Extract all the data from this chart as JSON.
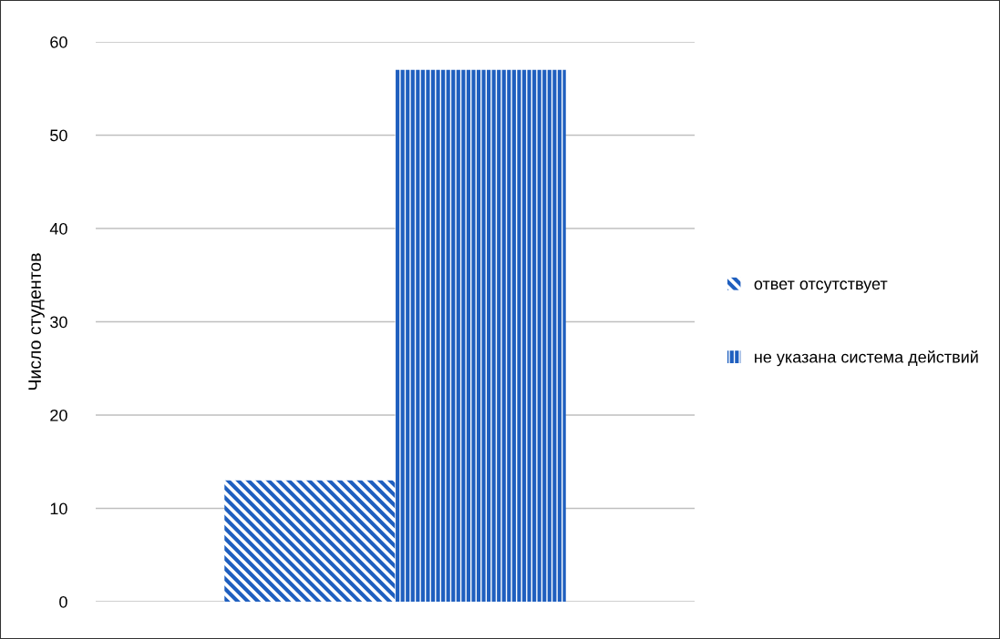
{
  "chart_data": {
    "type": "bar",
    "ylabel": "Число студентов",
    "categories": [
      null
    ],
    "series": [
      {
        "name": "ответ отсутствует",
        "color": "#1f5fbf",
        "values": [
          13
        ]
      },
      {
        "name": "не указана система действий",
        "color": "#1f5fbf",
        "values": [
          57
        ]
      }
    ],
    "ylim": [
      0,
      60
    ],
    "yticks": [
      0,
      10,
      20,
      30,
      40,
      50,
      60
    ],
    "grid": "y",
    "legend": "right"
  }
}
